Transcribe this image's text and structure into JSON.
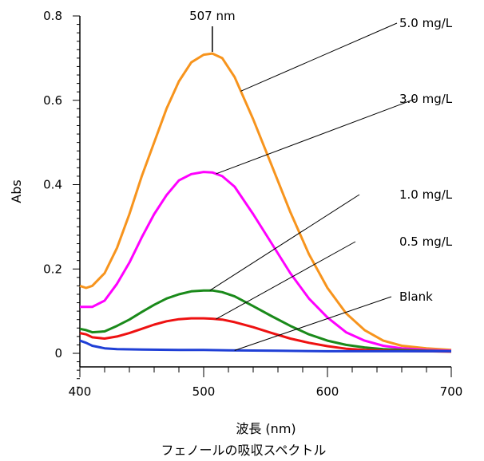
{
  "chart_data": {
    "type": "line",
    "title": "フェノールの吸収スペクトル",
    "xlabel": "波長 (nm)",
    "ylabel": "Abs",
    "xlim": [
      400,
      700
    ],
    "ylim": [
      0,
      0.8
    ],
    "x_ticks": [
      400,
      500,
      600,
      700
    ],
    "y_ticks": [
      "0",
      "0.2",
      "0.4",
      "0.6",
      "0.8"
    ],
    "grid": false,
    "peak_annotation": {
      "text": "507 nm",
      "x": 507
    },
    "series": [
      {
        "name": "5.0 mg/L",
        "color": "#f7941d",
        "points": [
          [
            400,
            0.16
          ],
          [
            405,
            0.155
          ],
          [
            410,
            0.16
          ],
          [
            420,
            0.19
          ],
          [
            430,
            0.25
          ],
          [
            440,
            0.33
          ],
          [
            450,
            0.42
          ],
          [
            460,
            0.5
          ],
          [
            470,
            0.58
          ],
          [
            480,
            0.645
          ],
          [
            490,
            0.69
          ],
          [
            500,
            0.708
          ],
          [
            507,
            0.711
          ],
          [
            515,
            0.7
          ],
          [
            525,
            0.655
          ],
          [
            540,
            0.555
          ],
          [
            555,
            0.445
          ],
          [
            570,
            0.335
          ],
          [
            585,
            0.235
          ],
          [
            600,
            0.155
          ],
          [
            615,
            0.095
          ],
          [
            630,
            0.055
          ],
          [
            645,
            0.03
          ],
          [
            660,
            0.018
          ],
          [
            680,
            0.012
          ],
          [
            700,
            0.008
          ]
        ]
      },
      {
        "name": "3.0 mg/L",
        "color": "#ff00ff",
        "points": [
          [
            400,
            0.11
          ],
          [
            410,
            0.11
          ],
          [
            420,
            0.125
          ],
          [
            430,
            0.165
          ],
          [
            440,
            0.215
          ],
          [
            450,
            0.275
          ],
          [
            460,
            0.33
          ],
          [
            470,
            0.375
          ],
          [
            480,
            0.41
          ],
          [
            490,
            0.425
          ],
          [
            500,
            0.43
          ],
          [
            507,
            0.429
          ],
          [
            515,
            0.42
          ],
          [
            525,
            0.395
          ],
          [
            540,
            0.33
          ],
          [
            555,
            0.26
          ],
          [
            570,
            0.19
          ],
          [
            585,
            0.13
          ],
          [
            600,
            0.085
          ],
          [
            615,
            0.05
          ],
          [
            630,
            0.03
          ],
          [
            645,
            0.018
          ],
          [
            660,
            0.012
          ],
          [
            680,
            0.008
          ],
          [
            700,
            0.006
          ]
        ]
      },
      {
        "name": "1.0 mg/L",
        "color": "#1a8a1a",
        "points": [
          [
            400,
            0.058
          ],
          [
            405,
            0.055
          ],
          [
            410,
            0.05
          ],
          [
            420,
            0.052
          ],
          [
            430,
            0.065
          ],
          [
            440,
            0.08
          ],
          [
            450,
            0.098
          ],
          [
            460,
            0.115
          ],
          [
            470,
            0.13
          ],
          [
            480,
            0.14
          ],
          [
            490,
            0.147
          ],
          [
            500,
            0.149
          ],
          [
            507,
            0.149
          ],
          [
            515,
            0.145
          ],
          [
            525,
            0.135
          ],
          [
            540,
            0.112
          ],
          [
            555,
            0.088
          ],
          [
            570,
            0.065
          ],
          [
            585,
            0.045
          ],
          [
            600,
            0.03
          ],
          [
            615,
            0.02
          ],
          [
            630,
            0.014
          ],
          [
            645,
            0.01
          ],
          [
            660,
            0.008
          ],
          [
            680,
            0.006
          ],
          [
            700,
            0.005
          ]
        ]
      },
      {
        "name": "0.5 mg/L",
        "color": "#ee1111",
        "points": [
          [
            400,
            0.048
          ],
          [
            405,
            0.045
          ],
          [
            410,
            0.038
          ],
          [
            420,
            0.035
          ],
          [
            430,
            0.04
          ],
          [
            440,
            0.048
          ],
          [
            450,
            0.058
          ],
          [
            460,
            0.068
          ],
          [
            470,
            0.076
          ],
          [
            480,
            0.081
          ],
          [
            490,
            0.083
          ],
          [
            500,
            0.083
          ],
          [
            507,
            0.082
          ],
          [
            515,
            0.08
          ],
          [
            525,
            0.074
          ],
          [
            540,
            0.062
          ],
          [
            555,
            0.048
          ],
          [
            570,
            0.035
          ],
          [
            585,
            0.025
          ],
          [
            600,
            0.017
          ],
          [
            615,
            0.011
          ],
          [
            630,
            0.008
          ],
          [
            650,
            0.006
          ],
          [
            680,
            0.005
          ],
          [
            700,
            0.004
          ]
        ]
      },
      {
        "name": "Blank",
        "color": "#1f3fd6",
        "points": [
          [
            400,
            0.03
          ],
          [
            405,
            0.025
          ],
          [
            410,
            0.018
          ],
          [
            420,
            0.012
          ],
          [
            430,
            0.01
          ],
          [
            450,
            0.009
          ],
          [
            480,
            0.008
          ],
          [
            500,
            0.008
          ],
          [
            520,
            0.007
          ],
          [
            560,
            0.006
          ],
          [
            600,
            0.005
          ],
          [
            650,
            0.005
          ],
          [
            700,
            0.005
          ]
        ]
      }
    ]
  }
}
